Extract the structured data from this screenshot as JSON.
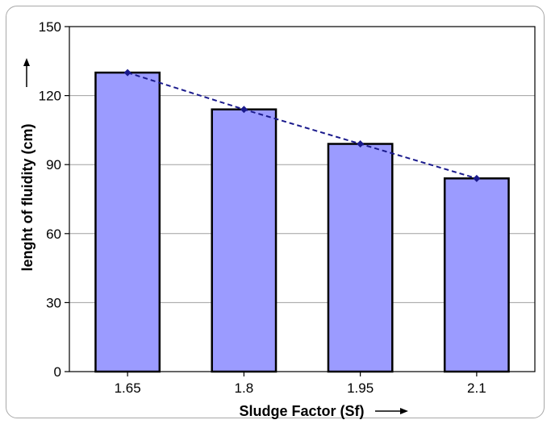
{
  "chart_data": {
    "type": "bar",
    "title": "",
    "xlabel": "Sludge Factor (Sf)",
    "ylabel": "lenght of fluidity (cm)",
    "categories": [
      "1.65",
      "1.8",
      "1.95",
      "2.1"
    ],
    "values": [
      130,
      114,
      99,
      84
    ],
    "trend_line": {
      "style": "dashed",
      "marker": "diamond",
      "values": [
        130,
        114,
        99,
        84
      ]
    },
    "ylim": [
      0,
      150
    ],
    "yticks": [
      0,
      30,
      60,
      90,
      120,
      150
    ],
    "grid": true,
    "legend": "none",
    "colors": {
      "bar_fill": "#9b9bff",
      "bar_stroke": "#000000",
      "trend_line": "#1a1a8c",
      "grid": "#a0a0a0"
    }
  }
}
